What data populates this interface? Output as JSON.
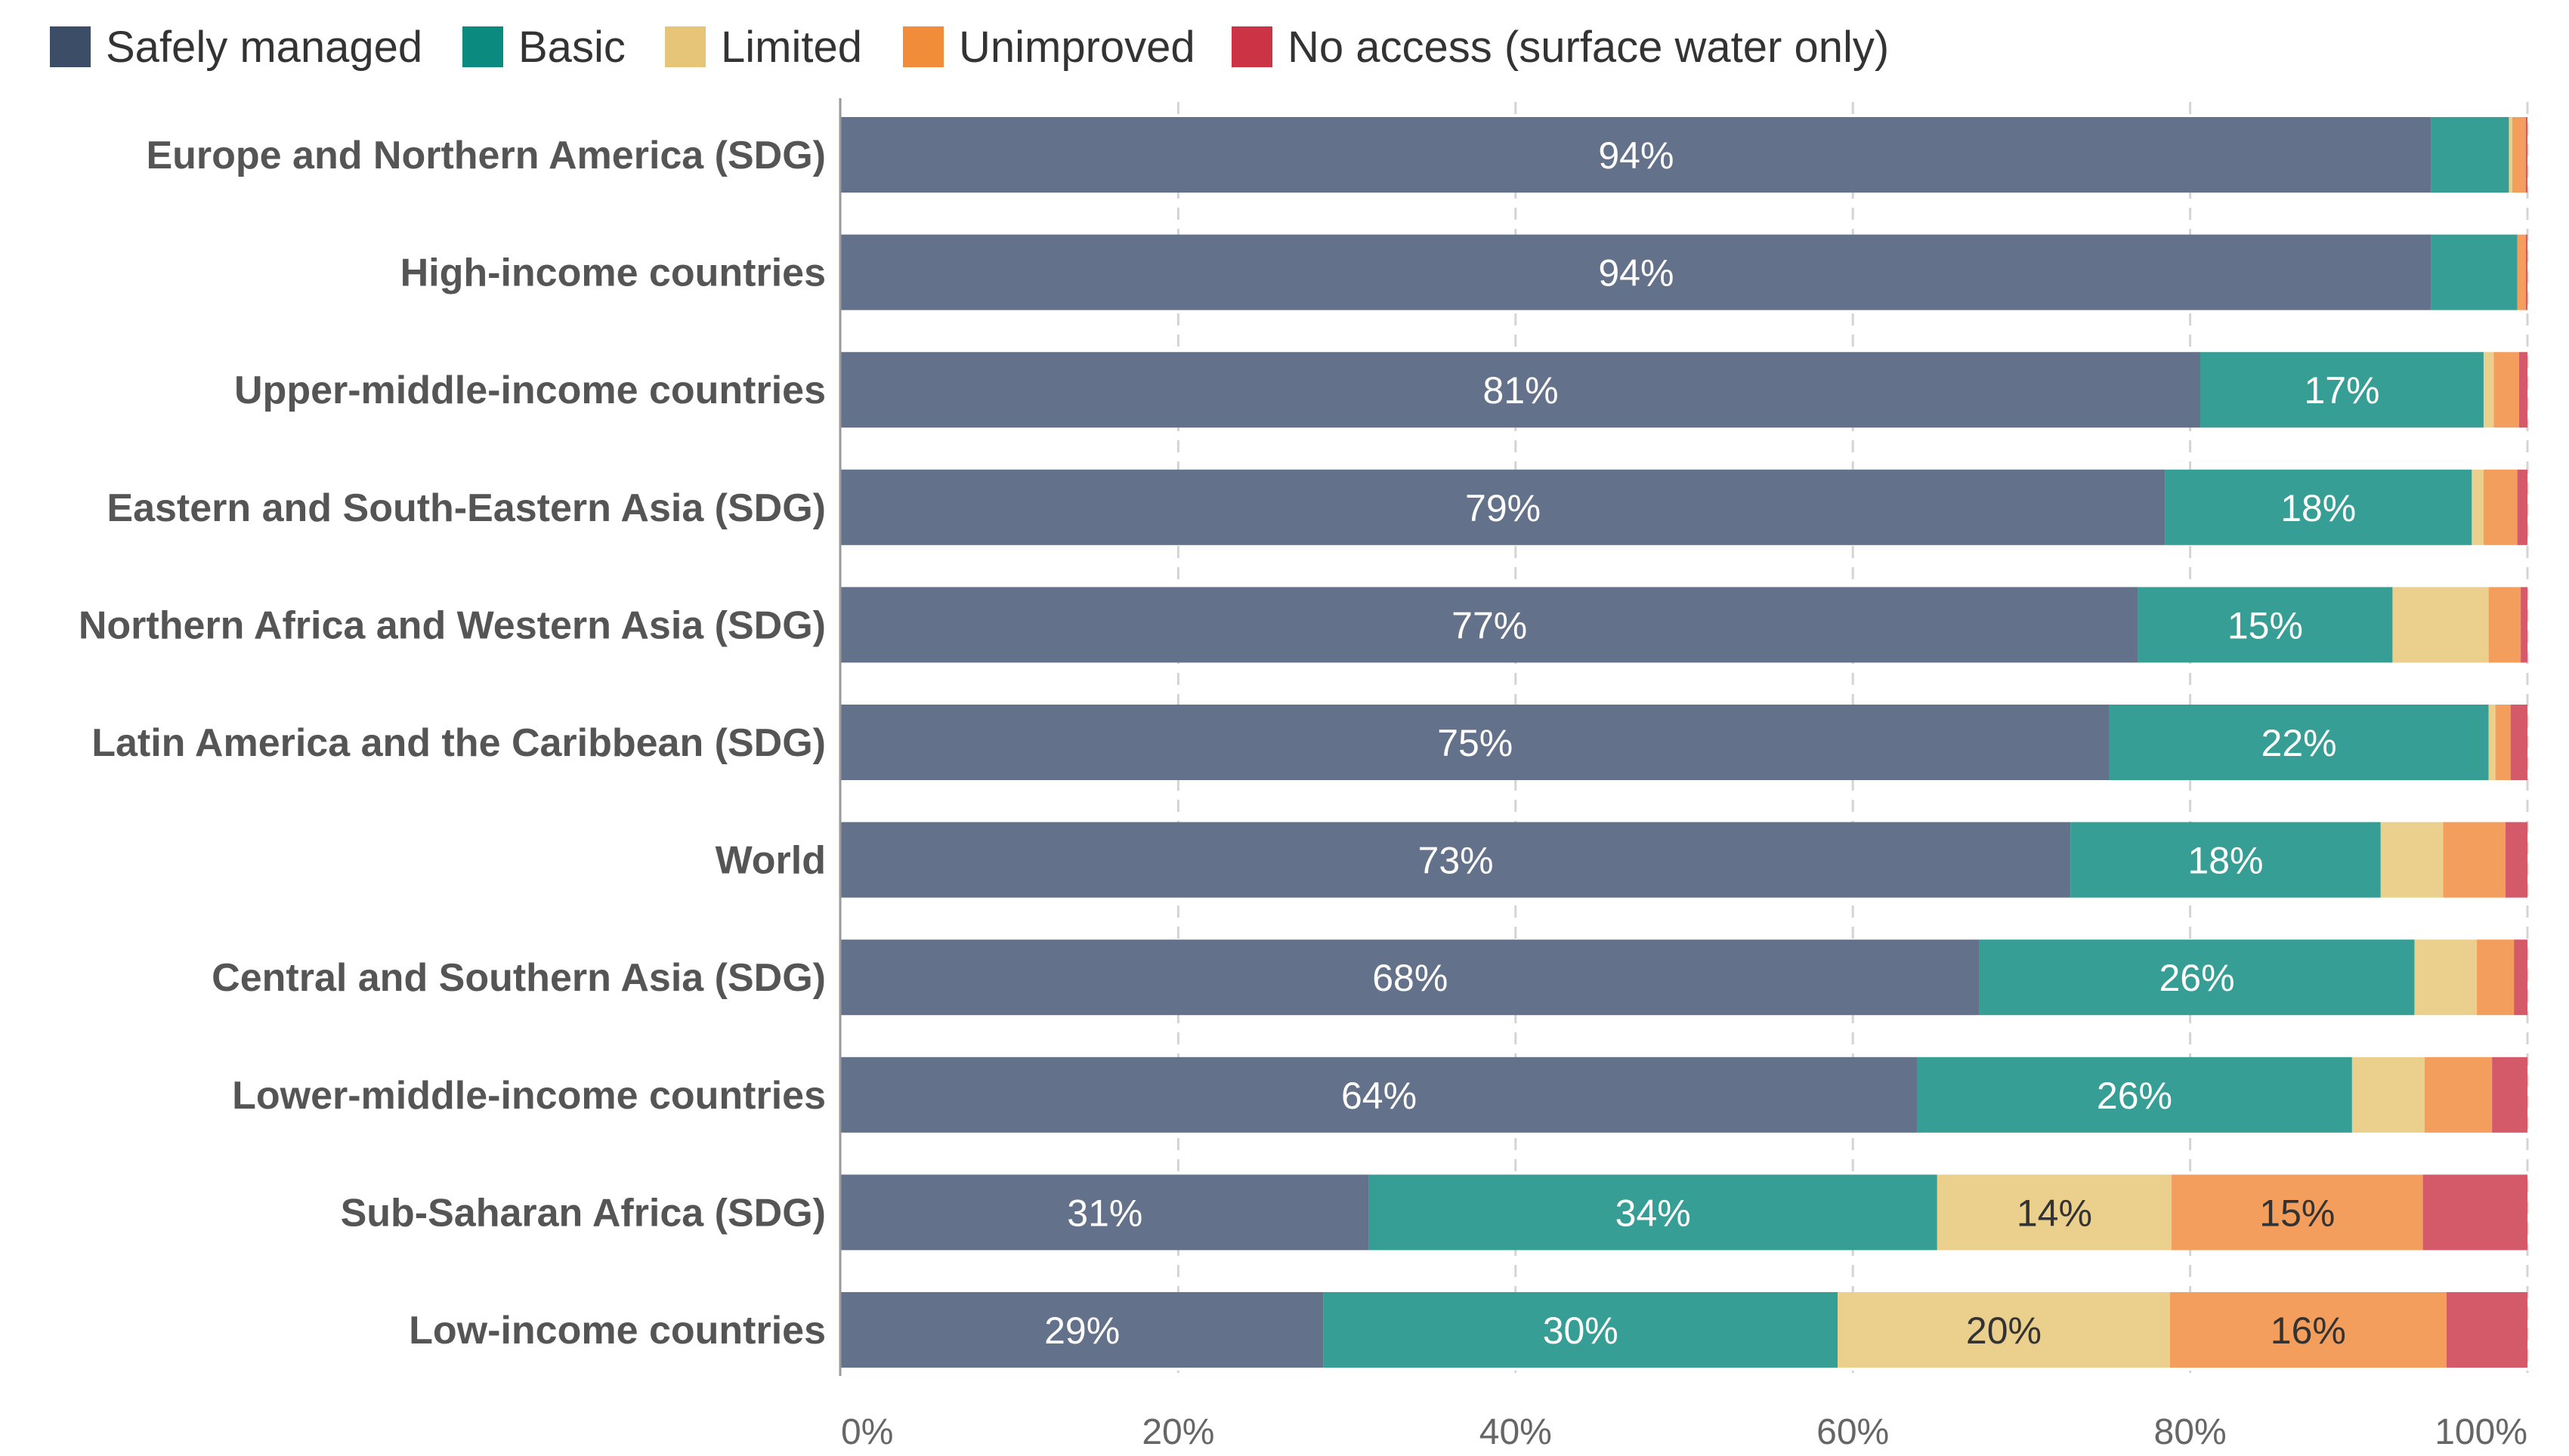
{
  "chart_data": {
    "type": "bar",
    "orientation": "horizontal",
    "stacked": true,
    "title": "",
    "xlabel": "",
    "ylabel": "",
    "xlim": [
      0,
      100
    ],
    "x_ticks": [
      "0%",
      "20%",
      "40%",
      "60%",
      "80%",
      "100%"
    ],
    "grid": "vertical dashed",
    "legend_position": "top-left",
    "categories": [
      "Europe and Northern America (SDG)",
      "High-income countries",
      "Upper-middle-income countries",
      "Eastern and South-Eastern Asia (SDG)",
      "Northern Africa and Western Asia (SDG)",
      "Latin America and the Caribbean (SDG)",
      "World",
      "Central and Southern Asia (SDG)",
      "Lower-middle-income countries",
      "Sub-Saharan Africa (SDG)",
      "Low-income countries"
    ],
    "series": [
      {
        "name": "Safely managed",
        "legend_color": "#3c4d68",
        "color": "#63728a",
        "values": [
          94.3,
          94.3,
          80.6,
          78.5,
          76.9,
          75.2,
          72.9,
          67.5,
          63.8,
          31.3,
          28.6
        ],
        "labels": [
          "94%",
          "94%",
          "81%",
          "79%",
          "77%",
          "75%",
          "73%",
          "68%",
          "64%",
          "31%",
          "29%"
        ]
      },
      {
        "name": "Basic",
        "legend_color": "#0b8a80",
        "color": "#369e95",
        "values": [
          4.6,
          5.1,
          16.8,
          18.2,
          15.1,
          22.5,
          18.4,
          25.8,
          25.8,
          33.7,
          30.5
        ],
        "labels": [
          "",
          "",
          "17%",
          "18%",
          "15%",
          "22%",
          "18%",
          "26%",
          "26%",
          "34%",
          "30%"
        ]
      },
      {
        "name": "Limited",
        "legend_color": "#e6c478",
        "color": "#ebd08d",
        "values": [
          0.2,
          0.0,
          0.6,
          0.7,
          5.7,
          0.4,
          3.7,
          3.7,
          4.3,
          13.9,
          19.7
        ],
        "labels": [
          "",
          "",
          "",
          "",
          "",
          "",
          "",
          "",
          "",
          "14%",
          "20%"
        ]
      },
      {
        "name": "Unimproved",
        "legend_color": "#f08c3a",
        "color": "#f39e5c",
        "values": [
          0.8,
          0.5,
          1.5,
          2.0,
          1.9,
          0.9,
          3.7,
          2.2,
          4.0,
          14.9,
          16.4
        ],
        "labels": [
          "",
          "",
          "",
          "",
          "",
          "",
          "",
          "",
          "",
          "15%",
          "16%"
        ]
      },
      {
        "name": "No access (surface water only)",
        "legend_color": "#cc3446",
        "color": "#d45a69",
        "values": [
          0.1,
          0.1,
          0.5,
          0.6,
          0.4,
          1.0,
          1.3,
          0.8,
          2.1,
          6.2,
          4.8
        ],
        "labels": [
          "",
          "",
          "",
          "",
          "",
          "",
          "",
          "",
          "",
          "",
          ""
        ]
      }
    ]
  }
}
